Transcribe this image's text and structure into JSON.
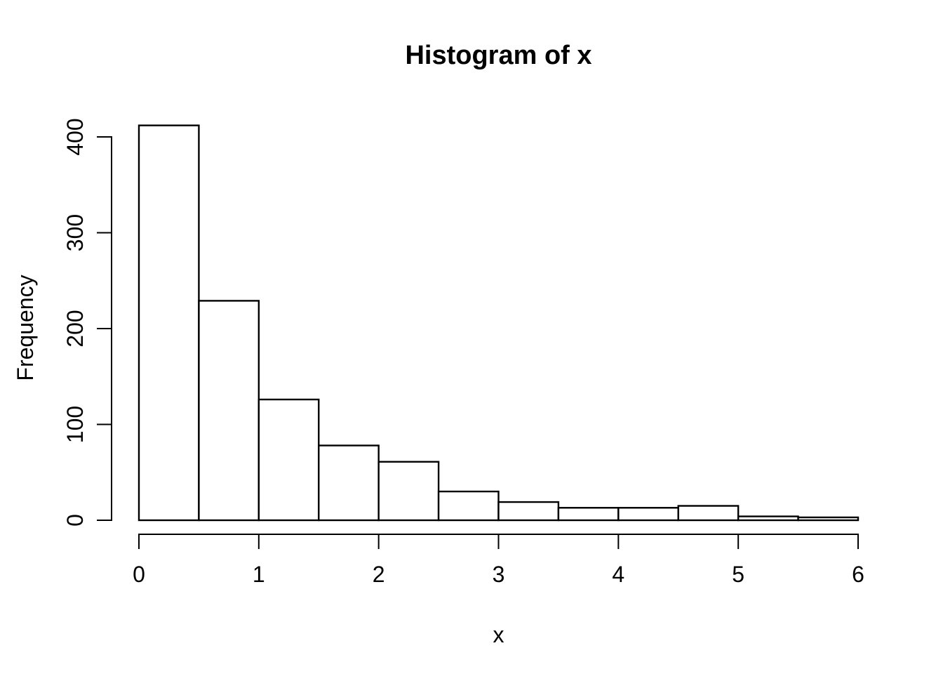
{
  "chart_data": {
    "type": "bar",
    "subtype": "histogram",
    "title": "Histogram of x",
    "xlabel": "x",
    "ylabel": "Frequency",
    "xlim": [
      0,
      6
    ],
    "ylim": [
      0,
      400
    ],
    "x_ticks": [
      0,
      1,
      2,
      3,
      4,
      5,
      6
    ],
    "y_ticks": [
      0,
      100,
      200,
      300,
      400
    ],
    "bin_width": 0.5,
    "bin_edges": [
      0,
      0.5,
      1,
      1.5,
      2,
      2.5,
      3,
      3.5,
      4,
      4.5,
      5,
      5.5,
      6
    ],
    "counts": [
      412,
      229,
      126,
      78,
      61,
      30,
      19,
      13,
      13,
      15,
      4,
      3
    ],
    "grid": false,
    "legend": false,
    "colors": {
      "background": "#ffffff",
      "foreground": "#000000",
      "bar_fill": "#ffffff",
      "bar_border": "#000000"
    }
  }
}
